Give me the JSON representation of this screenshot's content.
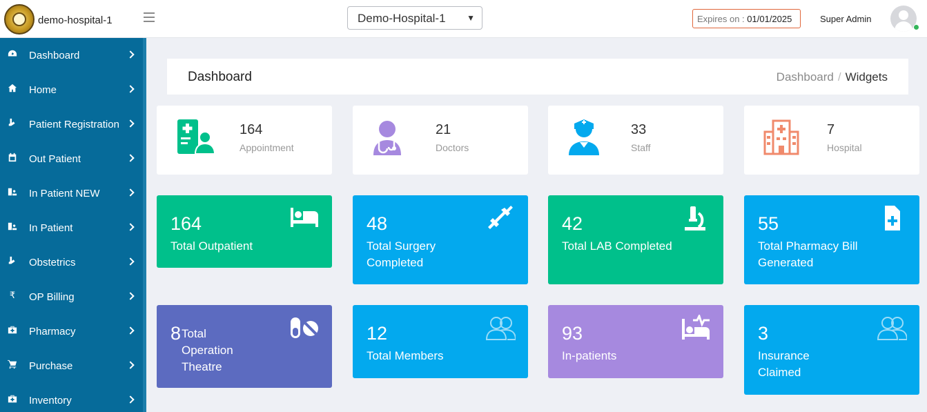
{
  "header": {
    "brand": "demo-hospital-1",
    "hospital_select_value": "Demo-Hospital-1",
    "expiry_label": "Expires on :",
    "expiry_date": "01/01/2025",
    "user_name": "Super Admin"
  },
  "sidebar": {
    "items": [
      {
        "label": "Dashboard",
        "icon": "dashboard-icon"
      },
      {
        "label": "Home",
        "icon": "home-icon"
      },
      {
        "label": "Patient Registration",
        "icon": "registration-icon"
      },
      {
        "label": "Out Patient",
        "icon": "calendar-icon"
      },
      {
        "label": "In Patient NEW",
        "icon": "bed-user-icon"
      },
      {
        "label": "In Patient",
        "icon": "bed-user-icon"
      },
      {
        "label": "Obstetrics",
        "icon": "obstetrics-icon"
      },
      {
        "label": "OP Billing",
        "icon": "rupee-icon"
      },
      {
        "label": "Pharmacy",
        "icon": "medkit-icon"
      },
      {
        "label": "Purchase",
        "icon": "cart-icon"
      },
      {
        "label": "Inventory",
        "icon": "medkit-icon"
      }
    ]
  },
  "page": {
    "title": "Dashboard",
    "breadcrumb": [
      "Dashboard",
      "Widgets"
    ]
  },
  "stats": [
    {
      "value": "164",
      "label": "Appointment",
      "color": "#00c08b"
    },
    {
      "value": "21",
      "label": "Doctors",
      "color": "#a689df"
    },
    {
      "value": "33",
      "label": "Staff",
      "color": "#03a9ee"
    },
    {
      "value": "7",
      "label": "Hospital",
      "color": "#f08a6c"
    }
  ],
  "widgets": [
    {
      "value": "164",
      "label": "Total Outpatient",
      "icon": "bed-icon",
      "color": "#00c08b"
    },
    {
      "value": "48",
      "label": "Total Surgery Completed",
      "icon": "syringe-icon",
      "color": "#03a9ee"
    },
    {
      "value": "42",
      "label": "Total LAB Completed",
      "icon": "microscope-icon",
      "color": "#00c08b"
    },
    {
      "value": "55",
      "label": "Total Pharmacy Bill Generated",
      "icon": "file-medical-icon",
      "color": "#03a9ee"
    },
    {
      "value": "8",
      "label": "Total Operation Theatre",
      "icon": "pills-icon",
      "color": "#5c6bc0"
    },
    {
      "value": "12",
      "label": "Total Members",
      "icon": "users-icon",
      "color": "#03a9ee"
    },
    {
      "value": "93",
      "label": "In-patients",
      "icon": "procedures-icon",
      "color": "#a689df"
    },
    {
      "value": "3",
      "label": "Insurance Claimed",
      "icon": "users-icon",
      "color": "#03a9ee"
    }
  ]
}
